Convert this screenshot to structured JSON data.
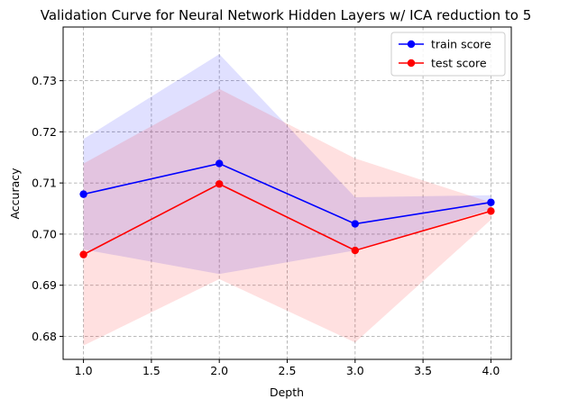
{
  "chart_data": {
    "type": "line",
    "title": "Validation Curve for Neural Network Hidden Layers w/ ICA reduction to 5",
    "xlabel": "Depth",
    "ylabel": "Accuracy",
    "x": [
      1.0,
      2.0,
      3.0,
      4.0
    ],
    "xlim": [
      0.85,
      4.15
    ],
    "ylim": [
      0.6755,
      0.7405
    ],
    "xticks": [
      1.0,
      1.5,
      2.0,
      2.5,
      3.0,
      3.5,
      4.0
    ],
    "xtick_labels": [
      "1.0",
      "1.5",
      "2.0",
      "2.5",
      "3.0",
      "3.5",
      "4.0"
    ],
    "yticks": [
      0.68,
      0.69,
      0.7,
      0.71,
      0.72,
      0.73
    ],
    "ytick_labels": [
      "0.68",
      "0.69",
      "0.70",
      "0.71",
      "0.72",
      "0.73"
    ],
    "grid": true,
    "legend_position": "top-right",
    "series": [
      {
        "name": "train score",
        "color": "#0000ff",
        "band_color": "#0000ff",
        "values": [
          0.7078,
          0.7138,
          0.702,
          0.7062
        ],
        "band_lower": [
          0.697,
          0.6922,
          0.6968,
          0.7048
        ],
        "band_upper": [
          0.7186,
          0.7352,
          0.7072,
          0.7076
        ]
      },
      {
        "name": "test score",
        "color": "#ff0000",
        "band_color": "#ff0000",
        "values": [
          0.696,
          0.7098,
          0.6968,
          0.7045
        ],
        "band_lower": [
          0.6782,
          0.6912,
          0.6788,
          0.7028
        ],
        "band_upper": [
          0.7138,
          0.7284,
          0.7148,
          0.7062
        ]
      }
    ]
  }
}
